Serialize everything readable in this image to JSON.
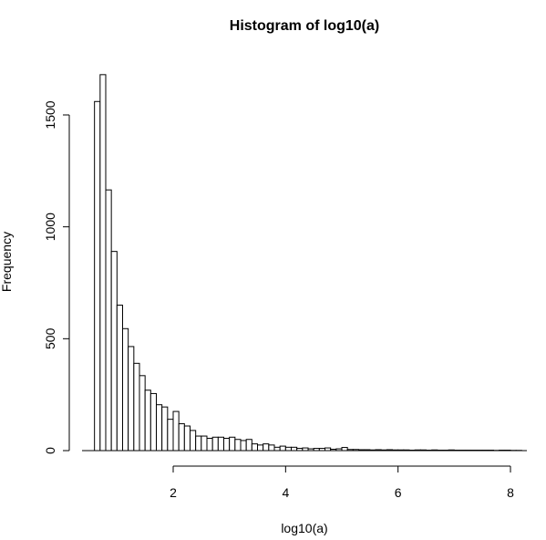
{
  "chart_data": {
    "type": "bar",
    "title": "Histogram of log10(a)",
    "xlabel": "log10(a)",
    "ylabel": "Frequency",
    "xlim": [
      0.5,
      8.3
    ],
    "ylim": [
      0,
      1700
    ],
    "x_ticks": [
      2,
      4,
      6,
      8
    ],
    "y_ticks": [
      0,
      500,
      1000,
      1500
    ],
    "bin_width": 0.1,
    "bin_start": 0.6,
    "values": [
      1560,
      1680,
      1165,
      890,
      650,
      545,
      465,
      390,
      335,
      270,
      255,
      205,
      195,
      140,
      175,
      120,
      110,
      90,
      65,
      65,
      55,
      60,
      60,
      55,
      60,
      50,
      45,
      50,
      30,
      25,
      30,
      25,
      15,
      20,
      15,
      15,
      10,
      12,
      8,
      10,
      10,
      12,
      6,
      8,
      14,
      5,
      5,
      4,
      4,
      3,
      4,
      3,
      4,
      3,
      3,
      3,
      2,
      3,
      3,
      2,
      3,
      2,
      2,
      3,
      2,
      2,
      2,
      2,
      2,
      2,
      2,
      1,
      2,
      2,
      1,
      1,
      1,
      2,
      1,
      1,
      1,
      1,
      1,
      1,
      1,
      1,
      1,
      1,
      1,
      1,
      1,
      1,
      1,
      1,
      1,
      1,
      1,
      1,
      1,
      1,
      1,
      1,
      1,
      1,
      1,
      1,
      1,
      1,
      1,
      1,
      1,
      1,
      1,
      1,
      1,
      1,
      1,
      1,
      1,
      1,
      1,
      1,
      1,
      1,
      1,
      1,
      1,
      1,
      1,
      1,
      1,
      1,
      1,
      1,
      1,
      1,
      1,
      1,
      1,
      1,
      1,
      1,
      1,
      1,
      1,
      1,
      1,
      1,
      1,
      1,
      1,
      1,
      1,
      1,
      1,
      1,
      1,
      1,
      1,
      1,
      1,
      1,
      1,
      1,
      1,
      1,
      1,
      1,
      1,
      1,
      1,
      1,
      1,
      1,
      1,
      1,
      1,
      1,
      1,
      1,
      1,
      1,
      1,
      1,
      1,
      1,
      1,
      1,
      1,
      1,
      1,
      1,
      1,
      1,
      1,
      1,
      1,
      1,
      1,
      1,
      1,
      1,
      1,
      1,
      1,
      1,
      1,
      1,
      1,
      1,
      1,
      1,
      1,
      1,
      1,
      1,
      1,
      1,
      1,
      1,
      1,
      1,
      1,
      1,
      1,
      1,
      1,
      1,
      1,
      1,
      1,
      1,
      1,
      1,
      1,
      1,
      1,
      1
    ],
    "grid": false,
    "legend": "none"
  }
}
